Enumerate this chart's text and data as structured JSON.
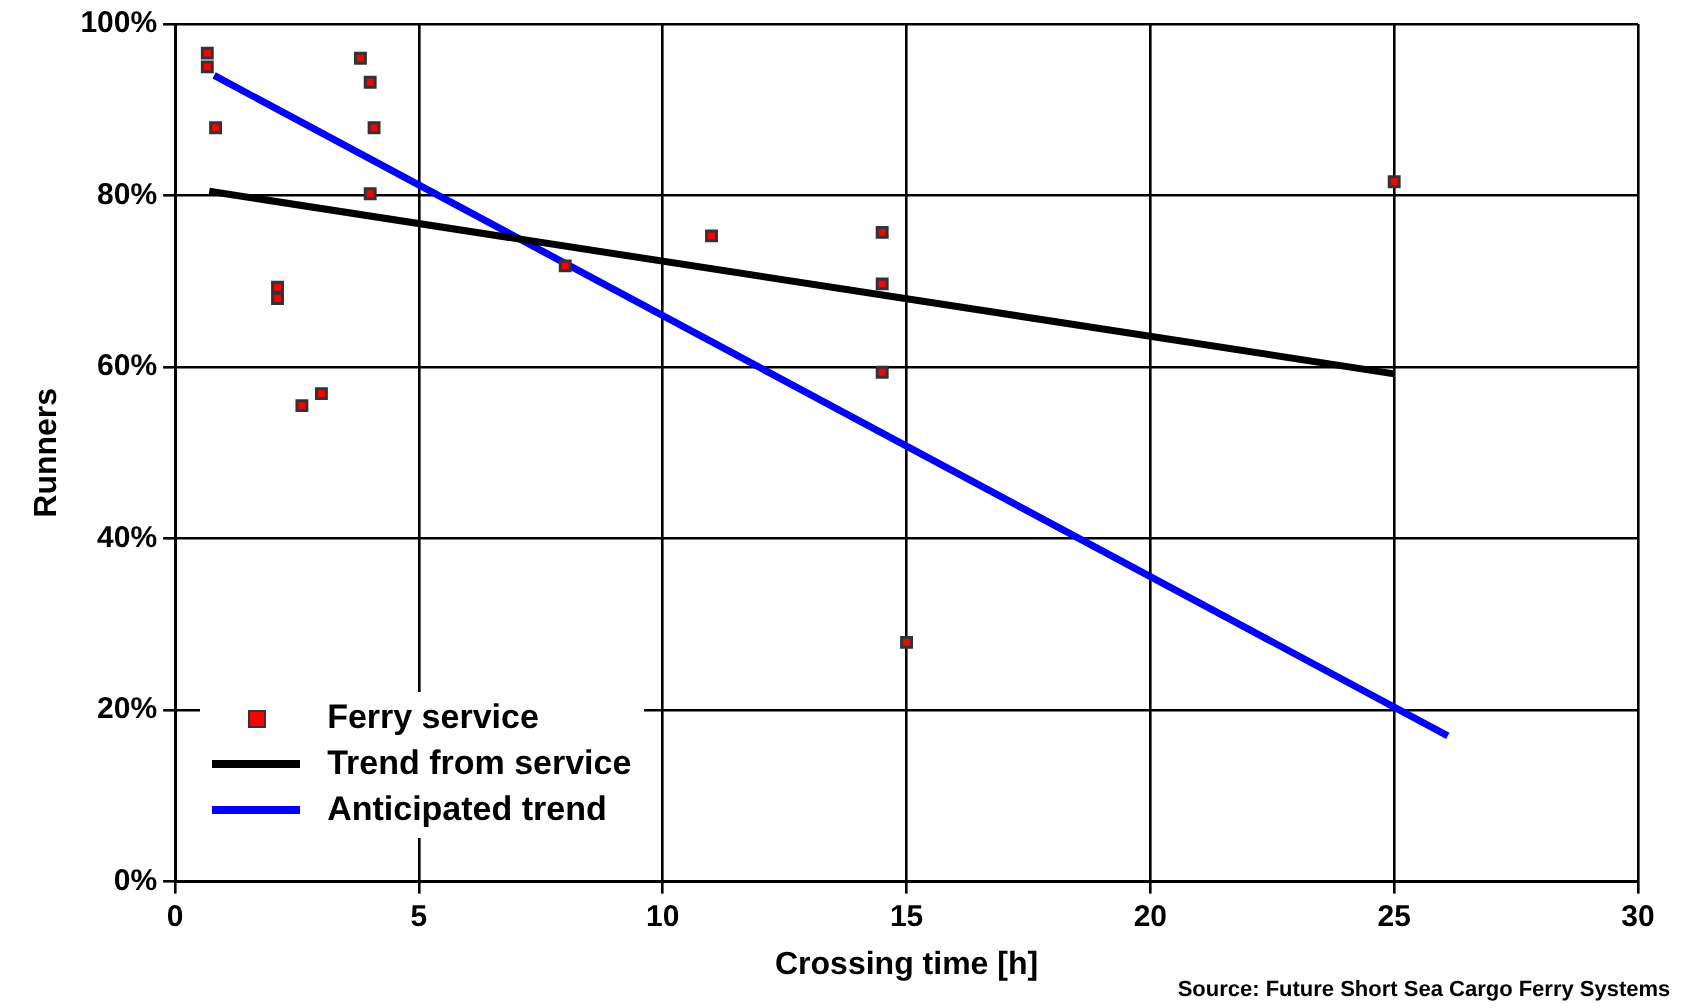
{
  "chart_data": {
    "type": "scatter",
    "xlabel": "Crossing time [h]",
    "ylabel": "Runners",
    "xlim": [
      0,
      30
    ],
    "xticks": [
      0,
      5,
      10,
      15,
      20,
      25,
      30
    ],
    "ylim": [
      0,
      100
    ],
    "yticks": [
      {
        "value": 0,
        "label": "0%"
      },
      {
        "value": 20,
        "label": "20%"
      },
      {
        "value": 40,
        "label": "40%"
      },
      {
        "value": 60,
        "label": "60%"
      },
      {
        "value": 80,
        "label": "80%"
      },
      {
        "value": 100,
        "label": "100%"
      }
    ],
    "grid": true,
    "legend": "bottom left",
    "annotations": [
      "Source: Future Short Sea Cargo Ferry Systems"
    ],
    "series": [
      {
        "name": "Ferry service",
        "marker": "square",
        "color": "#ff0000",
        "x": [
          0.66,
          0.66,
          0.83,
          3.8,
          4.0,
          4.08,
          4.0,
          2.1,
          2.1,
          2.6,
          3.0,
          8.0,
          11.0,
          14.5,
          14.5,
          14.5,
          15.0,
          25.0
        ],
        "values": [
          96.6,
          95.0,
          87.9,
          96.0,
          93.2,
          87.9,
          80.2,
          69.3,
          68.0,
          55.5,
          56.9,
          71.8,
          75.3,
          75.7,
          69.7,
          59.4,
          27.9,
          81.6
        ]
      },
      {
        "name": "Trend from service",
        "type": "line",
        "marker": "none",
        "color": "#000000",
        "x": [
          0.7,
          25.0
        ],
        "values": [
          80.5,
          59.2
        ]
      },
      {
        "name": "Anticipated trend",
        "type": "line",
        "marker": "none",
        "color": "#0000ff",
        "x": [
          0.8,
          26.1
        ],
        "values": [
          94.0,
          17.0
        ]
      }
    ]
  }
}
